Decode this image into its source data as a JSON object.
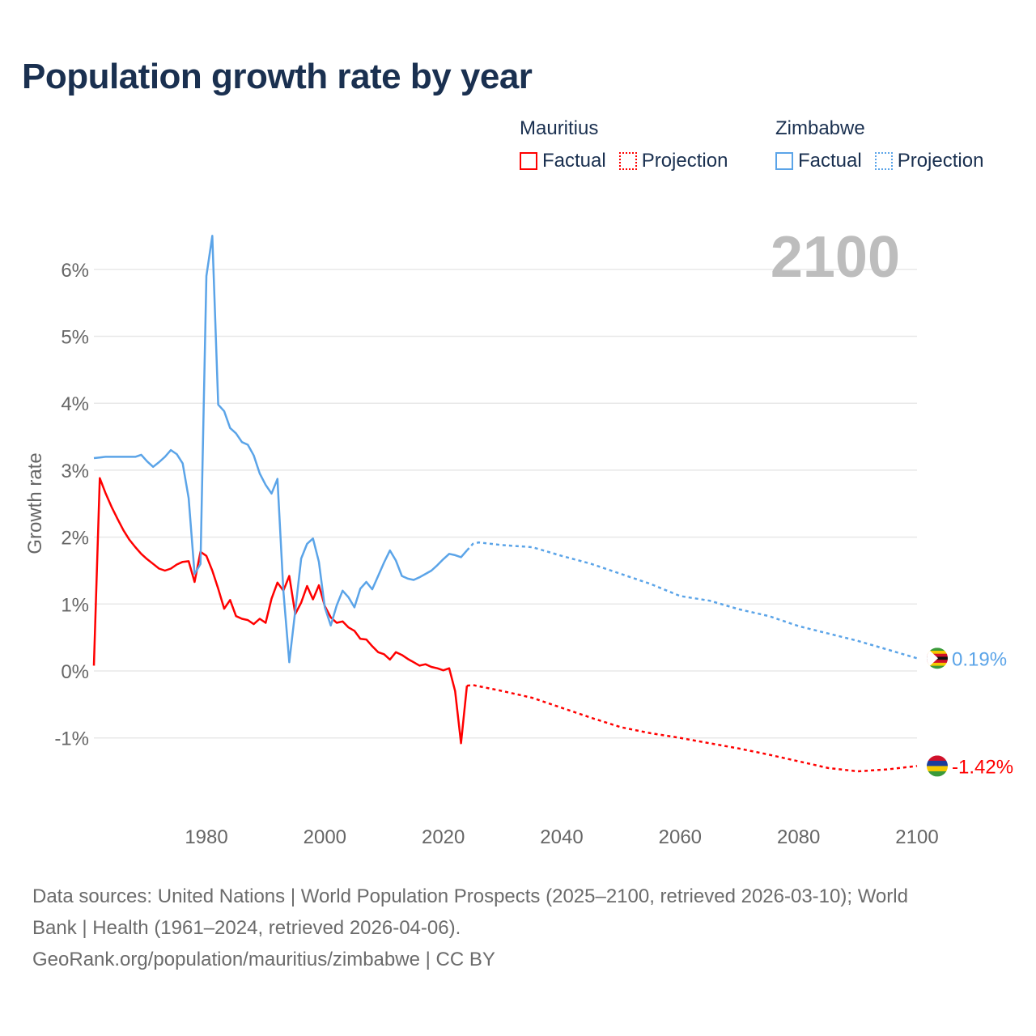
{
  "title": "Population growth rate by year",
  "legend": [
    {
      "country": "Mauritius",
      "factual": "Factual",
      "projection": "Projection",
      "color": "#ff0000"
    },
    {
      "country": "Zimbabwe",
      "factual": "Factual",
      "projection": "Projection",
      "color": "#5ba4e8"
    }
  ],
  "year_label": "2100",
  "source_line1": "Data sources: United Nations | World Population Prospects (2025–2100, retrieved 2026-03-10); World",
  "source_line2": "Bank | Health (1961–2024, retrieved 2026-04-06).",
  "source_line3": "GeoRank.org/population/mauritius/zimbabwe | CC BY",
  "chart_data": {
    "type": "line",
    "title": "Population growth rate by year",
    "xlabel": "",
    "ylabel": "Growth rate",
    "xlim": [
      1961,
      2100
    ],
    "ylim": [
      -2.2,
      6.8
    ],
    "x_ticks": [
      1980,
      2000,
      2020,
      2040,
      2060,
      2080,
      2100
    ],
    "x_tick_labels": [
      "1980",
      "2000",
      "2020",
      "2040",
      "2060",
      "2080",
      "2100"
    ],
    "y_ticks": [
      -1,
      0,
      1,
      2,
      3,
      4,
      5,
      6
    ],
    "y_tick_labels": [
      "-1%",
      "0%",
      "1%",
      "2%",
      "3%",
      "4%",
      "5%",
      "6%"
    ],
    "grid": true,
    "series": [
      {
        "name": "Mauritius",
        "color": "#ff0000",
        "end_label": "-1.42%",
        "factual": {
          "x": [
            1961,
            1962,
            1963,
            1964,
            1965,
            1966,
            1967,
            1968,
            1969,
            1970,
            1971,
            1972,
            1973,
            1974,
            1975,
            1976,
            1977,
            1978,
            1979,
            1980,
            1981,
            1982,
            1983,
            1984,
            1985,
            1986,
            1987,
            1988,
            1989,
            1990,
            1991,
            1992,
            1993,
            1994,
            1995,
            1996,
            1997,
            1998,
            1999,
            2000,
            2001,
            2002,
            2003,
            2004,
            2005,
            2006,
            2007,
            2008,
            2009,
            2010,
            2011,
            2012,
            2013,
            2014,
            2015,
            2016,
            2017,
            2018,
            2019,
            2020,
            2021,
            2022,
            2023,
            2024
          ],
          "y": [
            0.08,
            2.88,
            2.65,
            2.45,
            2.27,
            2.1,
            1.96,
            1.85,
            1.75,
            1.67,
            1.6,
            1.53,
            1.5,
            1.53,
            1.59,
            1.63,
            1.64,
            1.33,
            1.78,
            1.72,
            1.5,
            1.23,
            0.93,
            1.06,
            0.82,
            0.78,
            0.76,
            0.7,
            0.78,
            0.72,
            1.08,
            1.32,
            1.2,
            1.42,
            0.85,
            1.02,
            1.27,
            1.07,
            1.28,
            0.97,
            0.8,
            0.72,
            0.74,
            0.65,
            0.6,
            0.48,
            0.47,
            0.37,
            0.28,
            0.25,
            0.17,
            0.28,
            0.24,
            0.18,
            0.13,
            0.08,
            0.1,
            0.06,
            0.04,
            0.01,
            0.04,
            -0.3,
            -1.08,
            -0.22
          ]
        },
        "projection": {
          "x": [
            2024,
            2025,
            2030,
            2035,
            2040,
            2045,
            2050,
            2055,
            2060,
            2065,
            2070,
            2075,
            2080,
            2085,
            2090,
            2095,
            2100
          ],
          "y": [
            -0.22,
            -0.21,
            -0.3,
            -0.4,
            -0.55,
            -0.7,
            -0.84,
            -0.93,
            -1.0,
            -1.08,
            -1.16,
            -1.25,
            -1.35,
            -1.45,
            -1.5,
            -1.47,
            -1.42
          ]
        }
      },
      {
        "name": "Zimbabwe",
        "color": "#5ba4e8",
        "end_label": "0.19%",
        "factual": {
          "x": [
            1961,
            1962,
            1963,
            1964,
            1965,
            1966,
            1967,
            1968,
            1969,
            1970,
            1971,
            1972,
            1973,
            1974,
            1975,
            1976,
            1977,
            1978,
            1979,
            1980,
            1981,
            1982,
            1983,
            1984,
            1985,
            1986,
            1987,
            1988,
            1989,
            1990,
            1991,
            1992,
            1993,
            1994,
            1995,
            1996,
            1997,
            1998,
            1999,
            2000,
            2001,
            2002,
            2003,
            2004,
            2005,
            2006,
            2007,
            2008,
            2009,
            2010,
            2011,
            2012,
            2013,
            2014,
            2015,
            2016,
            2017,
            2018,
            2019,
            2020,
            2021,
            2022,
            2023,
            2024
          ],
          "y": [
            3.18,
            3.19,
            3.2,
            3.2,
            3.2,
            3.2,
            3.2,
            3.2,
            3.23,
            3.13,
            3.05,
            3.12,
            3.2,
            3.3,
            3.24,
            3.1,
            2.58,
            1.45,
            1.6,
            5.9,
            6.5,
            3.98,
            3.88,
            3.63,
            3.55,
            3.42,
            3.38,
            3.22,
            2.95,
            2.78,
            2.65,
            2.87,
            1.2,
            0.13,
            0.9,
            1.68,
            1.9,
            1.98,
            1.63,
            0.95,
            0.68,
            0.98,
            1.2,
            1.1,
            0.95,
            1.23,
            1.33,
            1.22,
            1.42,
            1.62,
            1.8,
            1.65,
            1.42,
            1.38,
            1.36,
            1.4,
            1.45,
            1.5,
            1.58,
            1.67,
            1.75,
            1.73,
            1.7,
            1.8
          ]
        },
        "projection": {
          "x": [
            2024,
            2025,
            2026,
            2030,
            2035,
            2040,
            2045,
            2050,
            2055,
            2060,
            2065,
            2070,
            2075,
            2080,
            2085,
            2090,
            2095,
            2100
          ],
          "y": [
            1.8,
            1.9,
            1.92,
            1.88,
            1.85,
            1.72,
            1.6,
            1.45,
            1.3,
            1.12,
            1.05,
            0.92,
            0.82,
            0.67,
            0.56,
            0.45,
            0.32,
            0.19
          ]
        }
      }
    ]
  }
}
